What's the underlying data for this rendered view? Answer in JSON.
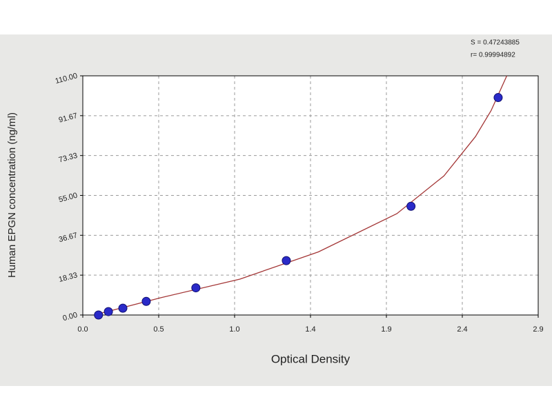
{
  "chart_data": {
    "type": "scatter",
    "x_label": "Optical Density",
    "y_label": "Human EPGN concentration (ng/ml)",
    "annotations": [
      "S = 0.47243885",
      "r= 0.99994892"
    ],
    "x": [
      0.1,
      0.163,
      0.255,
      0.404,
      0.72,
      1.296,
      2.09,
      2.645
    ],
    "values": [
      0,
      1.56,
      3.13,
      6.25,
      12.5,
      25,
      50,
      100
    ],
    "color": "#2a2ac8",
    "fit": {
      "color": "#a33535",
      "x": [
        0.1,
        0.5,
        1.0,
        1.5,
        2.0,
        2.3,
        2.5,
        2.6,
        2.7
      ],
      "values": [
        0.5,
        8,
        16.5,
        29,
        46.6,
        64,
        82,
        94,
        110
      ]
    },
    "xlim": [
      0,
      2.9
    ],
    "ylim": [
      0,
      110
    ],
    "xticks": [
      {
        "value": 0,
        "label": "0.0"
      },
      {
        "value": 0.4833,
        "label": "0.5"
      },
      {
        "value": 0.9667,
        "label": "1.0"
      },
      {
        "value": 1.45,
        "label": "1.4"
      },
      {
        "value": 1.9333,
        "label": "1.9"
      },
      {
        "value": 2.4167,
        "label": "2.4"
      },
      {
        "value": 2.9,
        "label": "2.9"
      }
    ],
    "yticks": [
      {
        "value": 0,
        "label": "0.00"
      },
      {
        "value": 18.33,
        "label": "18.33"
      },
      {
        "value": 36.67,
        "label": "36.67"
      },
      {
        "value": 55,
        "label": "55.00"
      },
      {
        "value": 73.33,
        "label": "73.33"
      },
      {
        "value": 91.67,
        "label": "91.67"
      },
      {
        "value": 110,
        "label": "110.00"
      }
    ],
    "grid": true
  }
}
